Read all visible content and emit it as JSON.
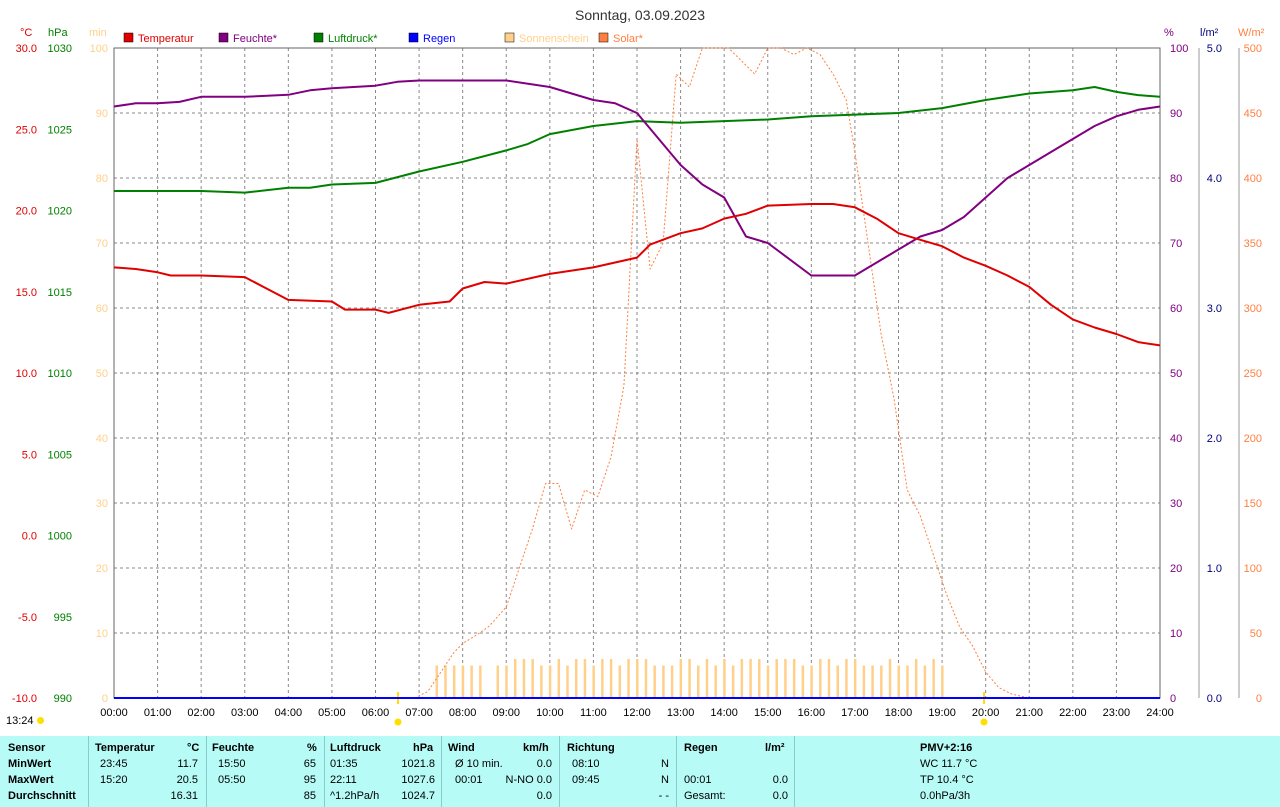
{
  "title": "Sonntag, 03.09.2023",
  "time_marker": "13:24",
  "axes": {
    "temp_unit": "°C",
    "pressure_unit": "hPa",
    "minutes_unit": "min",
    "percent_unit": "%",
    "rain_unit": "l/m²",
    "solar_unit": "W/m²",
    "temp_ticks": [
      "30.0",
      "25.0",
      "20.0",
      "15.0",
      "10.0",
      "5.0",
      "0.0",
      "-5.0",
      "-10.0"
    ],
    "pressure_ticks": [
      "1030",
      "1025",
      "1020",
      "1015",
      "1010",
      "1005",
      "1000",
      "995",
      "990"
    ],
    "minutes_ticks": [
      "100",
      "90",
      "80",
      "70",
      "60",
      "50",
      "40",
      "30",
      "20",
      "10",
      "0"
    ],
    "percent_ticks": [
      "100",
      "90",
      "80",
      "70",
      "60",
      "50",
      "40",
      "30",
      "20",
      "10",
      "0"
    ],
    "rain_ticks": [
      "5.0",
      "4.0",
      "3.0",
      "2.0",
      "1.0",
      "0.0"
    ],
    "solar_ticks": [
      "500",
      "450",
      "400",
      "350",
      "300",
      "250",
      "200",
      "150",
      "100",
      "50",
      "0"
    ],
    "x_ticks": [
      "00:00",
      "01:00",
      "02:00",
      "03:00",
      "04:00",
      "05:00",
      "06:00",
      "07:00",
      "08:00",
      "09:00",
      "10:00",
      "11:00",
      "12:00",
      "13:00",
      "14:00",
      "15:00",
      "16:00",
      "17:00",
      "18:00",
      "19:00",
      "20:00",
      "21:00",
      "22:00",
      "23:00",
      "24:00"
    ]
  },
  "legend": [
    {
      "label": "Temperatur",
      "color": "#e00000"
    },
    {
      "label": "Feuchte*",
      "color": "#800080"
    },
    {
      "label": "Luftdruck*",
      "color": "#008000"
    },
    {
      "label": "Regen",
      "color": "#0000ff"
    },
    {
      "label": "Sonnenschein",
      "color": "#ffd08a"
    },
    {
      "label": "Solar*",
      "color": "#ff7f40"
    }
  ],
  "colors": {
    "temperature": "#e00000",
    "humidity": "#800080",
    "pressure": "#008000",
    "rain": "#0000ff",
    "sunshine": "#ffd08a",
    "solar": "#ff7f40",
    "temp_axis": "#e00000",
    "pressure_axis": "#008000",
    "minutes_axis": "#ffd08a",
    "percent_axis": "#800080",
    "rain_axis": "#000080",
    "solar_axis": "#ff7f40"
  },
  "chart_data": {
    "type": "line",
    "x_range": [
      0,
      24
    ],
    "temp_range": [
      -10,
      30
    ],
    "pressure_range": [
      990,
      1030
    ],
    "percent_range": [
      0,
      100
    ],
    "solar_range": [
      0,
      500
    ],
    "sunshine_range": [
      0,
      100
    ],
    "series": [
      {
        "name": "Temperatur",
        "x": [
          0,
          0.5,
          1,
          1.3,
          2,
          3,
          3.5,
          4,
          5,
          5.3,
          6,
          6.3,
          7,
          7.7,
          8,
          8.5,
          9,
          10,
          10.5,
          11,
          12,
          12.3,
          13,
          13.5,
          14,
          14.5,
          15,
          16,
          16.5,
          17,
          17.5,
          18,
          18.5,
          19,
          19.5,
          20,
          20.5,
          21,
          21.5,
          22,
          22.5,
          23,
          23.5,
          24
        ],
        "y": [
          16.5,
          16.4,
          16.2,
          16.0,
          16.0,
          15.9,
          15.2,
          14.5,
          14.4,
          13.9,
          13.9,
          13.7,
          14.2,
          14.4,
          15.2,
          15.6,
          15.5,
          16.1,
          16.3,
          16.5,
          17.1,
          17.9,
          18.6,
          18.9,
          19.5,
          19.8,
          20.3,
          20.4,
          20.4,
          20.2,
          19.5,
          18.6,
          18.2,
          17.8,
          17.1,
          16.6,
          16.0,
          15.3,
          14.2,
          13.3,
          12.8,
          12.4,
          11.9,
          11.7
        ]
      },
      {
        "name": "Feuchte*",
        "x": [
          0,
          0.5,
          1,
          1.5,
          2,
          3,
          4,
          4.5,
          5,
          6,
          6.5,
          7,
          8,
          9,
          10,
          10.5,
          11,
          11.5,
          12,
          12.5,
          13,
          13.5,
          14,
          14.5,
          15,
          16,
          16.5,
          17,
          17.5,
          18,
          18.5,
          19,
          19.5,
          20,
          20.5,
          21,
          21.5,
          22,
          22.5,
          23,
          23.5,
          24
        ],
        "y": [
          91,
          91.5,
          91.5,
          91.7,
          92.5,
          92.5,
          92.8,
          93.5,
          93.8,
          94.2,
          94.8,
          95,
          95,
          95,
          94,
          93,
          92,
          91.5,
          90,
          86,
          82,
          79,
          77,
          71,
          70,
          65,
          65,
          65,
          67,
          69,
          71,
          72,
          74,
          77,
          80,
          82,
          84,
          86,
          88,
          89.5,
          90.5,
          91
        ]
      },
      {
        "name": "Luftdruck*",
        "x": [
          0,
          1,
          2,
          3,
          4,
          4.5,
          5,
          6,
          7,
          8,
          9,
          9.5,
          10,
          11,
          12,
          13,
          14,
          15,
          16,
          17,
          18,
          19,
          20,
          20.5,
          21,
          21.5,
          22,
          22.5,
          23,
          23.5,
          24
        ],
        "y": [
          1021.2,
          1021.2,
          1021.2,
          1021.1,
          1021.4,
          1021.4,
          1021.6,
          1021.7,
          1022.4,
          1023.0,
          1023.7,
          1024.1,
          1024.7,
          1025.2,
          1025.5,
          1025.4,
          1025.5,
          1025.6,
          1025.8,
          1025.9,
          1026.0,
          1026.3,
          1026.8,
          1027.0,
          1027.2,
          1027.3,
          1027.4,
          1027.6,
          1027.3,
          1027.1,
          1027.0
        ]
      },
      {
        "name": "Regen",
        "x": [
          0,
          24
        ],
        "y": [
          0,
          0
        ]
      },
      {
        "name": "Sonnenschein",
        "x": [
          7.4,
          7.6,
          7.8,
          8.0,
          8.2,
          8.4,
          8.6,
          8.8,
          9.0,
          9.2,
          9.4,
          9.6,
          9.8,
          10.0,
          10.2,
          10.4,
          10.6,
          10.8,
          11.0,
          11.2,
          11.4,
          11.6,
          11.8,
          12.0,
          12.2,
          12.4,
          12.6,
          12.8,
          13.0,
          13.2,
          13.4,
          13.6,
          13.8,
          14.0,
          14.2,
          14.4,
          14.6,
          14.8,
          15.0,
          15.2,
          15.4,
          15.6,
          15.8,
          16.0,
          16.2,
          16.4,
          16.6,
          16.8,
          17.0,
          17.2,
          17.4,
          17.6,
          17.8,
          18.0,
          18.2,
          18.4,
          18.6,
          18.8,
          19.0
        ],
        "y": [
          5,
          5,
          5,
          5,
          5,
          5,
          0,
          5,
          5,
          6,
          6,
          6,
          5,
          5,
          6,
          5,
          6,
          6,
          5,
          6,
          6,
          5,
          6,
          6,
          6,
          5,
          5,
          5,
          6,
          6,
          5,
          6,
          5,
          6,
          5,
          6,
          6,
          6,
          5,
          6,
          6,
          6,
          5,
          5,
          6,
          6,
          5,
          6,
          6,
          5,
          5,
          5,
          6,
          5,
          5,
          6,
          5,
          6,
          5
        ]
      },
      {
        "name": "Solar*",
        "x": [
          6.9,
          7.2,
          7.5,
          7.8,
          8.0,
          8.3,
          8.6,
          9.0,
          9.3,
          9.6,
          9.9,
          10.2,
          10.5,
          10.8,
          11.1,
          11.4,
          11.7,
          12.0,
          12.3,
          12.6,
          12.9,
          13.2,
          13.5,
          13.8,
          14.1,
          14.4,
          14.7,
          15.0,
          15.3,
          15.6,
          15.9,
          16.2,
          16.5,
          16.8,
          17.0,
          17.3,
          17.6,
          17.9,
          18.2,
          18.5,
          18.8,
          19.1,
          19.4,
          19.7,
          20.0,
          20.3,
          20.6,
          21.0
        ],
        "y": [
          0,
          5,
          20,
          35,
          42,
          48,
          55,
          70,
          100,
          130,
          165,
          165,
          130,
          160,
          155,
          185,
          240,
          430,
          330,
          350,
          480,
          470,
          500,
          500,
          500,
          490,
          480,
          500,
          500,
          495,
          500,
          495,
          480,
          460,
          420,
          350,
          280,
          230,
          160,
          140,
          110,
          80,
          55,
          40,
          20,
          8,
          3,
          0
        ]
      }
    ]
  },
  "stats": {
    "headers": {
      "sensor": "Sensor",
      "temp": "Temperatur",
      "temp_unit": "°C",
      "hum": "Feuchte",
      "hum_unit": "%",
      "press": "Luftdruck",
      "press_unit": "hPa",
      "wind": "Wind",
      "wind_unit": "km/h",
      "dir": "Richtung",
      "rain": "Regen",
      "rain_unit": "l/m²",
      "pmv": "PMV+2:16"
    },
    "rows": [
      {
        "label": "MinWert",
        "temp_time": "23:45",
        "temp_val": "11.7",
        "hum_time": "15:50",
        "hum_val": "65",
        "press_time": "01:35",
        "press_val": "1021.8",
        "wind_time": "Ø 10 min.",
        "wind_val": "0.0",
        "dir_time": "08:10",
        "dir_val": "N",
        "rain_time": "",
        "rain_val": "",
        "pmv": "WC 11.7 °C"
      },
      {
        "label": "MaxWert",
        "temp_time": "15:20",
        "temp_val": "20.5",
        "hum_time": "05:50",
        "hum_val": "95",
        "press_time": "22:11",
        "press_val": "1027.6",
        "wind_time": "00:01",
        "wind_val": "N-NO 0.0",
        "dir_time": "09:45",
        "dir_val": "N",
        "rain_time": "00:01",
        "rain_val": "0.0",
        "pmv": "TP 10.4 °C"
      },
      {
        "label": "Durchschnitt",
        "temp_time": "",
        "temp_val": "16.31",
        "hum_time": "",
        "hum_val": "85",
        "press_time": "^1.2hPa/h",
        "press_val": "1024.7",
        "wind_time": "",
        "wind_val": "0.0",
        "dir_time": "",
        "dir_val": "- -",
        "rain_time": "Gesamt:",
        "rain_val": "0.0",
        "pmv": "0.0hPa/3h"
      }
    ]
  }
}
